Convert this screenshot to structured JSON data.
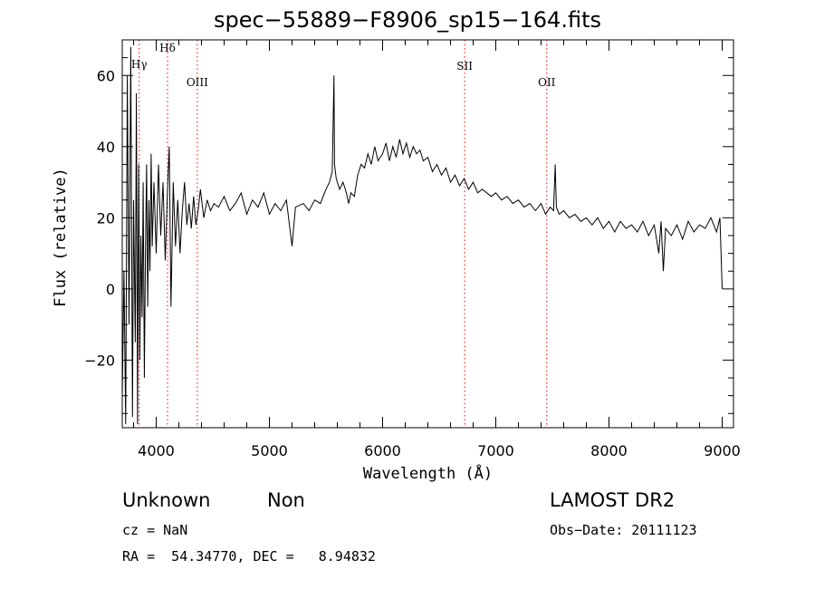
{
  "chart_data": {
    "type": "line",
    "title": "spec−55889−F8906_sp15−164.fits",
    "xlabel": "Wavelength (Å)",
    "ylabel": "Flux (relative)",
    "xlim": [
      3700,
      9100
    ],
    "ylim": [
      -39,
      70
    ],
    "xticks": [
      4000,
      5000,
      6000,
      7000,
      8000,
      9000
    ],
    "xtick_labels": [
      "4000",
      "5000",
      "6000",
      "7000",
      "8000",
      "9000"
    ],
    "yticks": [
      -20,
      0,
      20,
      40,
      60
    ],
    "ytick_labels": [
      "−20",
      "0",
      "20",
      "40",
      "60"
    ],
    "line_color": "#000000",
    "line_marker_color": "#ff0000",
    "spectral_lines": [
      {
        "name": "Hγ",
        "wavelength": 3850
      },
      {
        "name": "Hδ",
        "wavelength": 4100
      },
      {
        "name": "OIII",
        "wavelength": 4363
      },
      {
        "name": "SII",
        "wavelength": 6725
      },
      {
        "name": "OII",
        "wavelength": 7450
      }
    ],
    "series": [
      {
        "values": [
          [
            3700,
            -30
          ],
          [
            3715,
            5
          ],
          [
            3730,
            -38
          ],
          [
            3745,
            60
          ],
          [
            3760,
            -10
          ],
          [
            3775,
            68
          ],
          [
            3790,
            -36
          ],
          [
            3800,
            25
          ],
          [
            3815,
            -15
          ],
          [
            3825,
            55
          ],
          [
            3835,
            -38
          ],
          [
            3845,
            35
          ],
          [
            3855,
            -20
          ],
          [
            3865,
            15
          ],
          [
            3875,
            -8
          ],
          [
            3885,
            30
          ],
          [
            3895,
            -25
          ],
          [
            3905,
            10
          ],
          [
            3915,
            35
          ],
          [
            3925,
            -5
          ],
          [
            3935,
            25
          ],
          [
            3945,
            5
          ],
          [
            3955,
            38
          ],
          [
            3965,
            12
          ],
          [
            3980,
            30
          ],
          [
            4000,
            10
          ],
          [
            4020,
            35
          ],
          [
            4040,
            15
          ],
          [
            4060,
            30
          ],
          [
            4080,
            8
          ],
          [
            4100,
            28
          ],
          [
            4115,
            40
          ],
          [
            4130,
            -5
          ],
          [
            4150,
            30
          ],
          [
            4170,
            12
          ],
          [
            4190,
            25
          ],
          [
            4210,
            10
          ],
          [
            4230,
            22
          ],
          [
            4250,
            30
          ],
          [
            4270,
            18
          ],
          [
            4290,
            24
          ],
          [
            4310,
            17
          ],
          [
            4330,
            26
          ],
          [
            4350,
            18
          ],
          [
            4370,
            22
          ],
          [
            4390,
            28
          ],
          [
            4420,
            20
          ],
          [
            4450,
            25
          ],
          [
            4480,
            22
          ],
          [
            4510,
            24
          ],
          [
            4550,
            23
          ],
          [
            4600,
            26
          ],
          [
            4650,
            22
          ],
          [
            4700,
            24
          ],
          [
            4750,
            27
          ],
          [
            4800,
            21
          ],
          [
            4850,
            25
          ],
          [
            4900,
            23
          ],
          [
            4950,
            27
          ],
          [
            5000,
            21
          ],
          [
            5050,
            24
          ],
          [
            5100,
            22
          ],
          [
            5150,
            25
          ],
          [
            5200,
            12
          ],
          [
            5230,
            23
          ],
          [
            5300,
            24
          ],
          [
            5350,
            22
          ],
          [
            5400,
            25
          ],
          [
            5450,
            24
          ],
          [
            5500,
            28
          ],
          [
            5530,
            30
          ],
          [
            5555,
            33
          ],
          [
            5570,
            60
          ],
          [
            5575,
            35
          ],
          [
            5590,
            31
          ],
          [
            5620,
            28
          ],
          [
            5650,
            30
          ],
          [
            5680,
            27
          ],
          [
            5700,
            24
          ],
          [
            5720,
            27
          ],
          [
            5750,
            26
          ],
          [
            5780,
            32
          ],
          [
            5810,
            35
          ],
          [
            5840,
            34
          ],
          [
            5870,
            38
          ],
          [
            5900,
            35
          ],
          [
            5930,
            40
          ],
          [
            5960,
            36
          ],
          [
            6000,
            38
          ],
          [
            6030,
            41
          ],
          [
            6060,
            36
          ],
          [
            6090,
            40
          ],
          [
            6120,
            37
          ],
          [
            6150,
            42
          ],
          [
            6180,
            38
          ],
          [
            6210,
            41
          ],
          [
            6240,
            37
          ],
          [
            6270,
            40
          ],
          [
            6300,
            38
          ],
          [
            6330,
            39
          ],
          [
            6360,
            36
          ],
          [
            6400,
            37
          ],
          [
            6440,
            33
          ],
          [
            6480,
            35
          ],
          [
            6520,
            32
          ],
          [
            6560,
            34
          ],
          [
            6600,
            30
          ],
          [
            6640,
            32
          ],
          [
            6680,
            29
          ],
          [
            6720,
            31
          ],
          [
            6760,
            28
          ],
          [
            6800,
            30
          ],
          [
            6840,
            27
          ],
          [
            6880,
            28
          ],
          [
            6920,
            27
          ],
          [
            6960,
            26
          ],
          [
            7000,
            27
          ],
          [
            7050,
            25
          ],
          [
            7100,
            26
          ],
          [
            7150,
            24
          ],
          [
            7200,
            25
          ],
          [
            7250,
            23
          ],
          [
            7300,
            24
          ],
          [
            7350,
            22
          ],
          [
            7400,
            24
          ],
          [
            7440,
            21
          ],
          [
            7480,
            23
          ],
          [
            7510,
            22
          ],
          [
            7525,
            35
          ],
          [
            7535,
            23
          ],
          [
            7560,
            21
          ],
          [
            7600,
            22
          ],
          [
            7650,
            20
          ],
          [
            7700,
            21
          ],
          [
            7750,
            19
          ],
          [
            7800,
            20
          ],
          [
            7850,
            18
          ],
          [
            7900,
            20
          ],
          [
            7950,
            17
          ],
          [
            8000,
            19
          ],
          [
            8050,
            16
          ],
          [
            8100,
            19
          ],
          [
            8150,
            17
          ],
          [
            8200,
            18
          ],
          [
            8250,
            16
          ],
          [
            8300,
            19
          ],
          [
            8350,
            15
          ],
          [
            8400,
            18
          ],
          [
            8440,
            10
          ],
          [
            8460,
            19
          ],
          [
            8480,
            5
          ],
          [
            8500,
            17
          ],
          [
            8550,
            15
          ],
          [
            8600,
            18
          ],
          [
            8650,
            14
          ],
          [
            8700,
            19
          ],
          [
            8750,
            16
          ],
          [
            8800,
            18
          ],
          [
            8850,
            17
          ],
          [
            8900,
            20
          ],
          [
            8950,
            16
          ],
          [
            8980,
            20
          ],
          [
            9000,
            0
          ]
        ]
      }
    ]
  },
  "footer": {
    "object_class": "Unknown",
    "subclass": "Non",
    "survey": "LAMOST DR2",
    "cz": "cz = NaN",
    "obs_date": "Obs−Date: 20111123",
    "coords": "RA =  54.34770, DEC =   8.94832"
  }
}
